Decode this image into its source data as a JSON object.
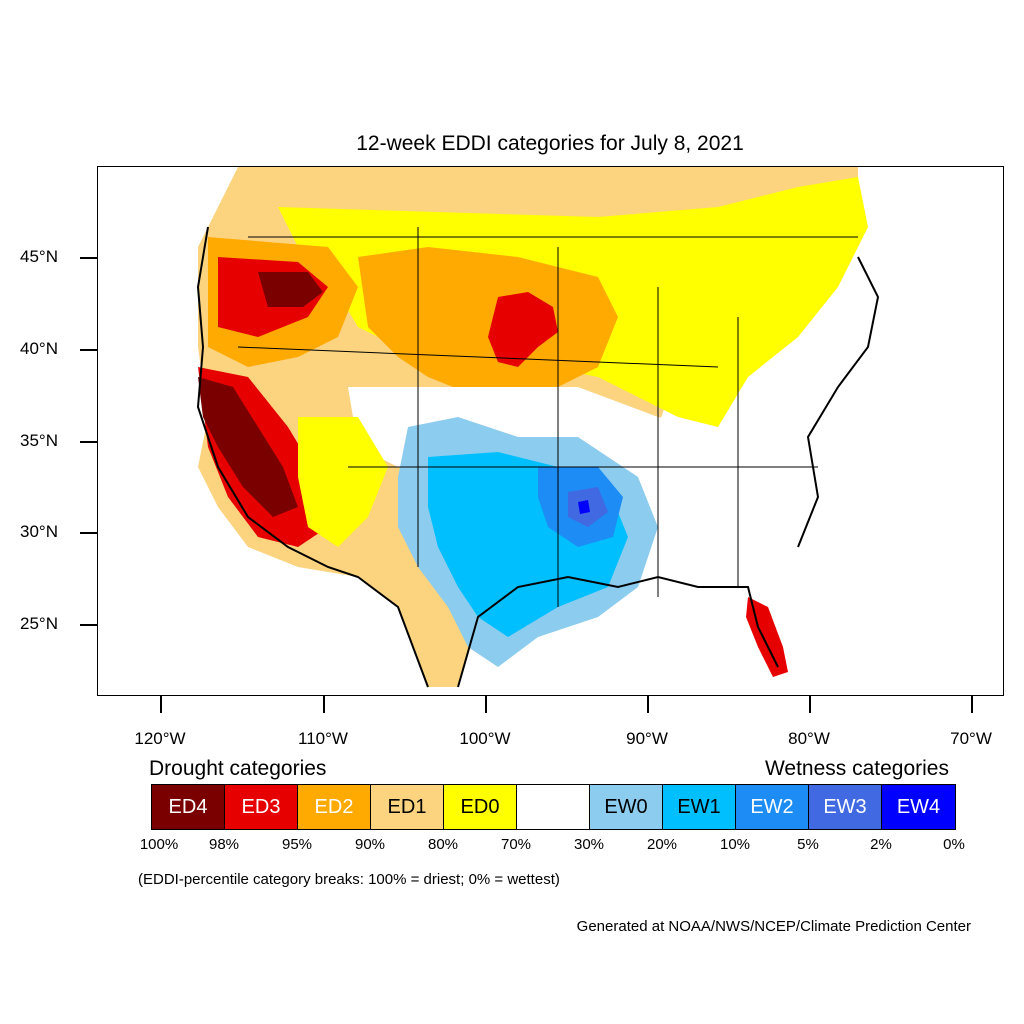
{
  "title": "12-week EDDI categories for July 8, 2021",
  "map": {
    "lat_labels": [
      "45°N",
      "40°N",
      "35°N",
      "30°N",
      "25°N"
    ],
    "lon_labels": [
      "120°W",
      "110°W",
      "100°W",
      "90°W",
      "80°W",
      "70°W"
    ],
    "regions": [
      {
        "name": "pacific-northwest",
        "category": "ED4"
      },
      {
        "name": "california-central",
        "category": "ED4"
      },
      {
        "name": "northern-plains",
        "category": "ED2"
      },
      {
        "name": "southern-plains",
        "category": "EW1"
      },
      {
        "name": "arkansas-louisiana",
        "category": "EW2"
      },
      {
        "name": "south-florida",
        "category": "ED3"
      }
    ]
  },
  "legend": {
    "drought_heading": "Drought categories",
    "wetness_heading": "Wetness categories",
    "categories": [
      {
        "label": "ED4",
        "color": "#7a0000",
        "text_color": "#ffffff"
      },
      {
        "label": "ED3",
        "color": "#e60000",
        "text_color": "#ffffff"
      },
      {
        "label": "ED2",
        "color": "#ffaa00",
        "text_color": "#ffffff"
      },
      {
        "label": "ED1",
        "color": "#fcd37f",
        "text_color": "#000000"
      },
      {
        "label": "ED0",
        "color": "#ffff00",
        "text_color": "#000000"
      },
      {
        "label": "",
        "color": "#ffffff",
        "text_color": "#000000"
      },
      {
        "label": "EW0",
        "color": "#8ccdef",
        "text_color": "#000000"
      },
      {
        "label": "EW1",
        "color": "#00bfff",
        "text_color": "#000000"
      },
      {
        "label": "EW2",
        "color": "#1d8cf5",
        "text_color": "#ffffff"
      },
      {
        "label": "EW3",
        "color": "#4169e1",
        "text_color": "#ffffff"
      },
      {
        "label": "EW4",
        "color": "#0000ff",
        "text_color": "#ffffff"
      }
    ],
    "percent_breaks": [
      "100%",
      "98%",
      "95%",
      "90%",
      "80%",
      "70%",
      "30%",
      "20%",
      "10%",
      "5%",
      "2%",
      "0%"
    ]
  },
  "note": "(EDDI-percentile category breaks: 100% = driest; 0% = wettest)",
  "credit": "Generated at NOAA/NWS/NCEP/Climate Prediction Center"
}
